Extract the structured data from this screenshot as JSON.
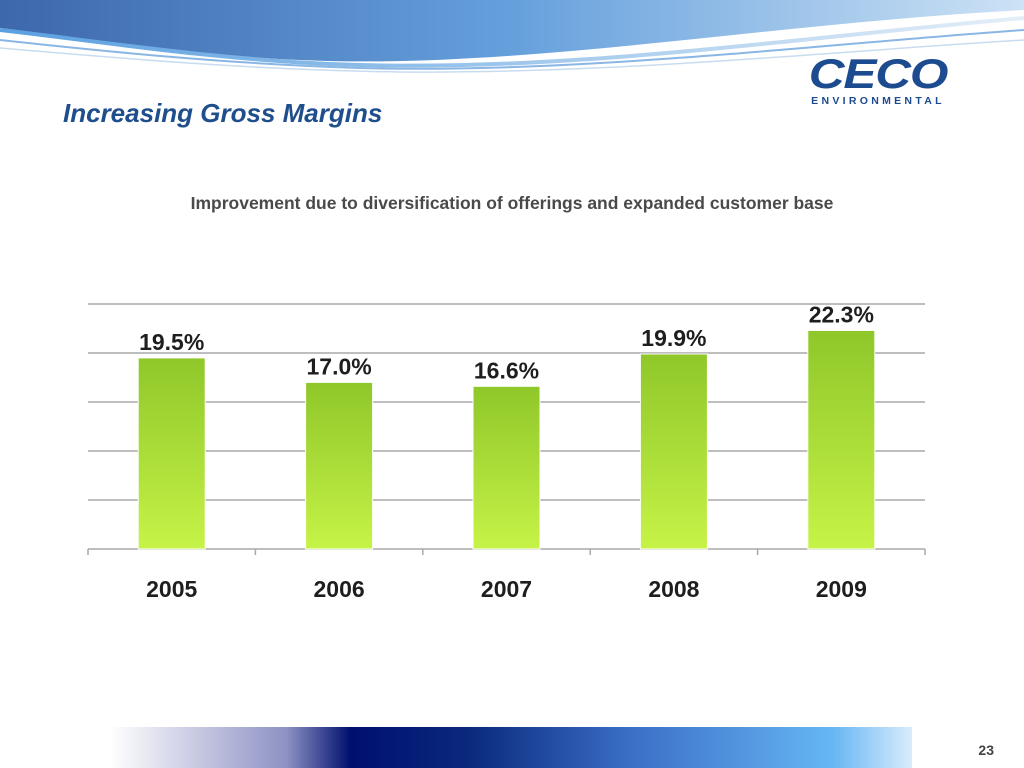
{
  "header": {
    "title": "Increasing Gross Margins",
    "subtitle": "Improvement due to diversification of offerings and expanded customer base"
  },
  "logo": {
    "mark": "CECO",
    "sub": "ENVIRONMENTAL"
  },
  "footer": {
    "page_number": "23"
  },
  "colors": {
    "bar_light": "#c6f347",
    "bar_dark": "#8fc72a",
    "grid": "#a8a8a8",
    "title": "#1f4e8c",
    "label": "#1e1e1e"
  },
  "chart_data": {
    "type": "bar",
    "title": "",
    "xlabel": "",
    "ylabel": "",
    "categories": [
      "2005",
      "2006",
      "2007",
      "2008",
      "2009"
    ],
    "values": [
      19.5,
      17.0,
      16.6,
      19.9,
      22.3
    ],
    "data_labels": [
      "19.5%",
      "17.0%",
      "16.6%",
      "19.9%",
      "22.3%"
    ],
    "ylim": [
      0,
      25
    ],
    "gridlines": true,
    "legend": "none"
  }
}
